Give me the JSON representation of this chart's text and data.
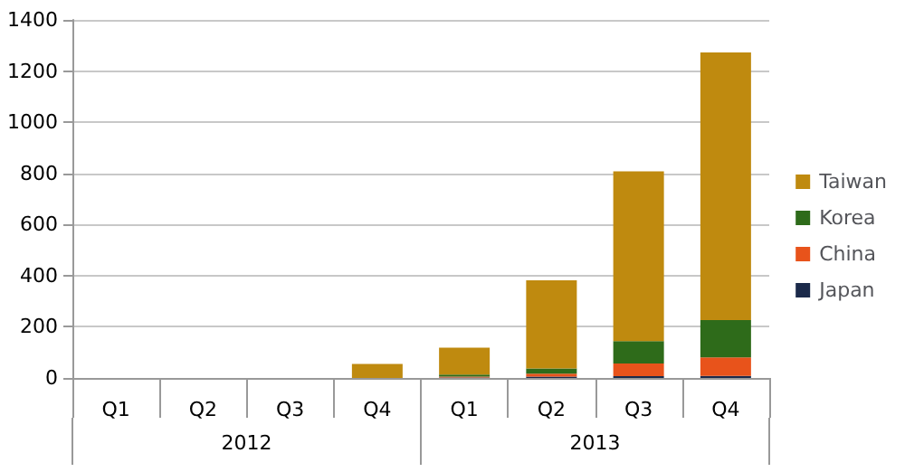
{
  "chart_data": {
    "type": "bar",
    "stacked": true,
    "categories": [
      "Q1",
      "Q2",
      "Q3",
      "Q4",
      "Q1",
      "Q2",
      "Q3",
      "Q4"
    ],
    "annotations": [
      "2012",
      "2013"
    ],
    "series": [
      {
        "name": "Japan",
        "color": "#1b2a4a",
        "values": [
          0,
          0,
          0,
          0,
          2,
          5,
          7,
          8
        ]
      },
      {
        "name": "China",
        "color": "#e8531b",
        "values": [
          0,
          0,
          0,
          0,
          3,
          12,
          50,
          72
        ]
      },
      {
        "name": "Korea",
        "color": "#2e6b1a",
        "values": [
          0,
          0,
          0,
          0,
          8,
          20,
          87,
          146
        ]
      },
      {
        "name": "Taiwan",
        "color": "#bf8a0f",
        "values": [
          0,
          0,
          0,
          55,
          105,
          345,
          664,
          1047
        ]
      }
    ],
    "ylim": [
      0,
      1400
    ],
    "yticks": [
      0,
      200,
      400,
      600,
      800,
      1000,
      1200,
      1400
    ],
    "grid": "y",
    "legend": "right"
  }
}
